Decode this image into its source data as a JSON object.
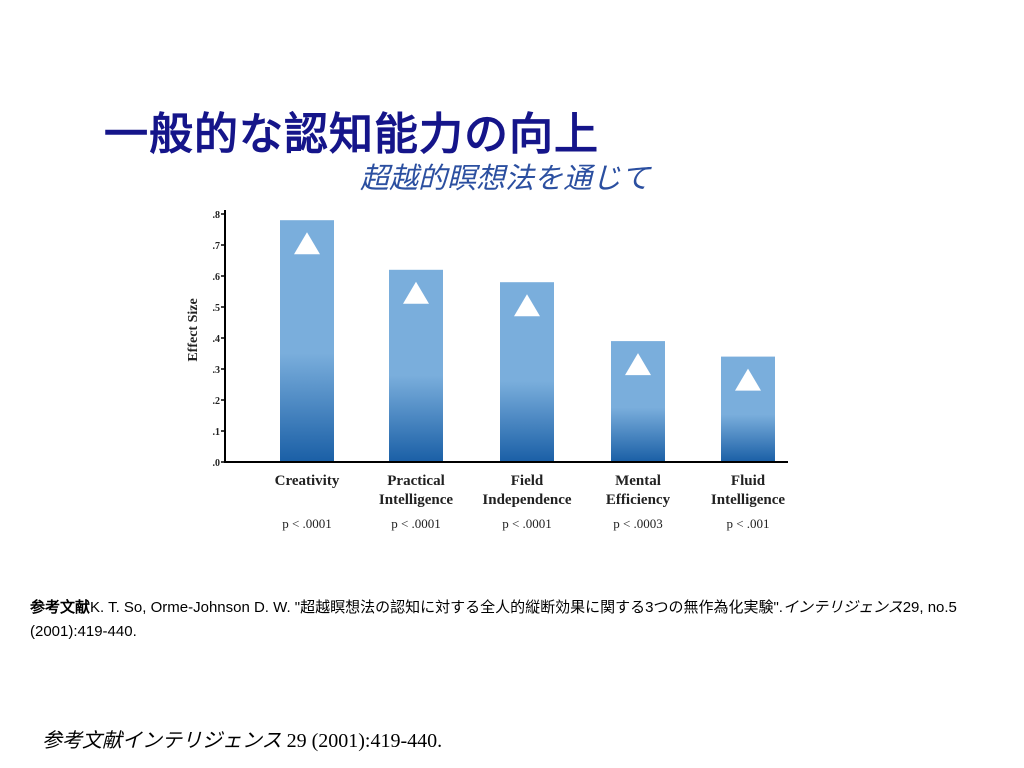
{
  "slide": {
    "title": "一般的な認知能力の向上",
    "subtitle": "超越的瞑想法を通じて",
    "reference": {
      "label": "参考文献",
      "text": "K. T. So, Orme-Johnson D. W. \"超越瞑想法の認知に対する全人的縦断効果に関する3つの無作為化実験\".",
      "journal": "インテリジェンス",
      "details": "29, no.5 (2001):419-440."
    },
    "footer": {
      "label": "参考文献",
      "journal": "インテリジェンス",
      "details": "29 (2001):419-440."
    }
  },
  "chart_data": {
    "type": "bar",
    "ylabel": "Effect Size",
    "ylim": [
      0,
      0.8
    ],
    "yticks": [
      ".0",
      ".1",
      ".2",
      ".3",
      ".4",
      ".5",
      ".6",
      ".7",
      ".8"
    ],
    "categories": [
      [
        "Creativity"
      ],
      [
        "Practical",
        "Intelligence"
      ],
      [
        "Field",
        "Independence"
      ],
      [
        "Mental",
        "Efficiency"
      ],
      [
        "Fluid",
        "Intelligence"
      ]
    ],
    "values": [
      0.78,
      0.62,
      0.58,
      0.39,
      0.34
    ],
    "p_values": [
      "p < .0001",
      "p < .0001",
      "p < .0001",
      "p < .0003",
      "p < .001"
    ],
    "marker": "white triangle",
    "colors": {
      "bar_top": "#7aaedc",
      "bar_bottom": "#1a5fa6",
      "axis": "#000000"
    }
  }
}
